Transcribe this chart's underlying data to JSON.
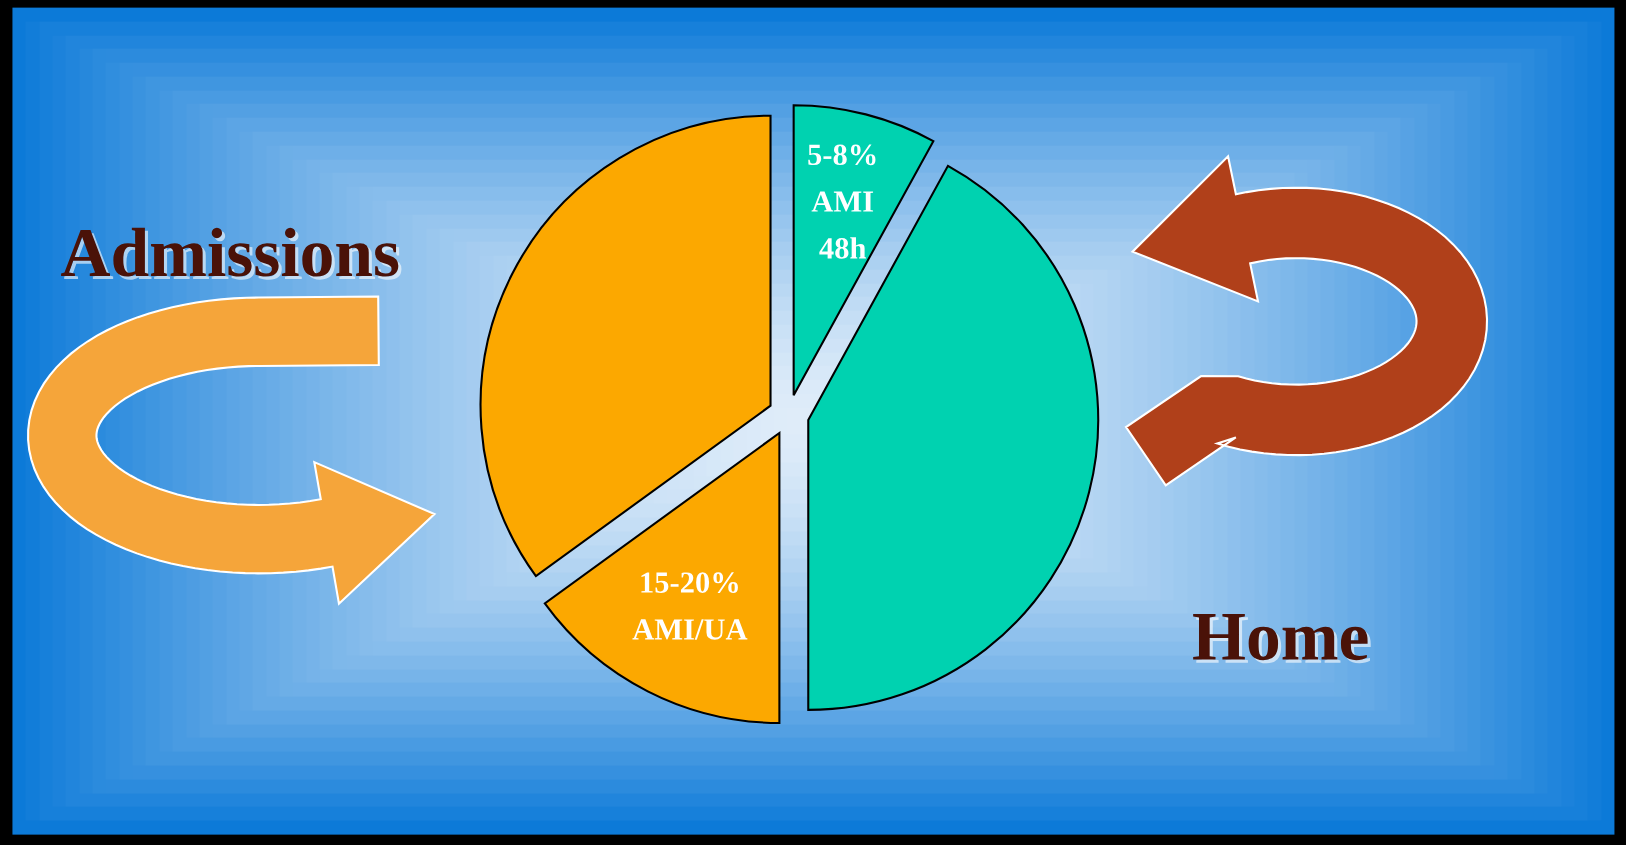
{
  "chart_data": {
    "type": "pie",
    "categories": [
      "5-8%\nAMI\n48h",
      null,
      "15-20%\nAMI/UA",
      null
    ],
    "values": [
      8,
      42,
      15,
      35
    ],
    "colors": [
      "#00d2b0",
      "#00d2b0",
      "#fca800",
      "#fca800"
    ],
    "annotations": [
      "Admissions",
      "Home"
    ]
  }
}
